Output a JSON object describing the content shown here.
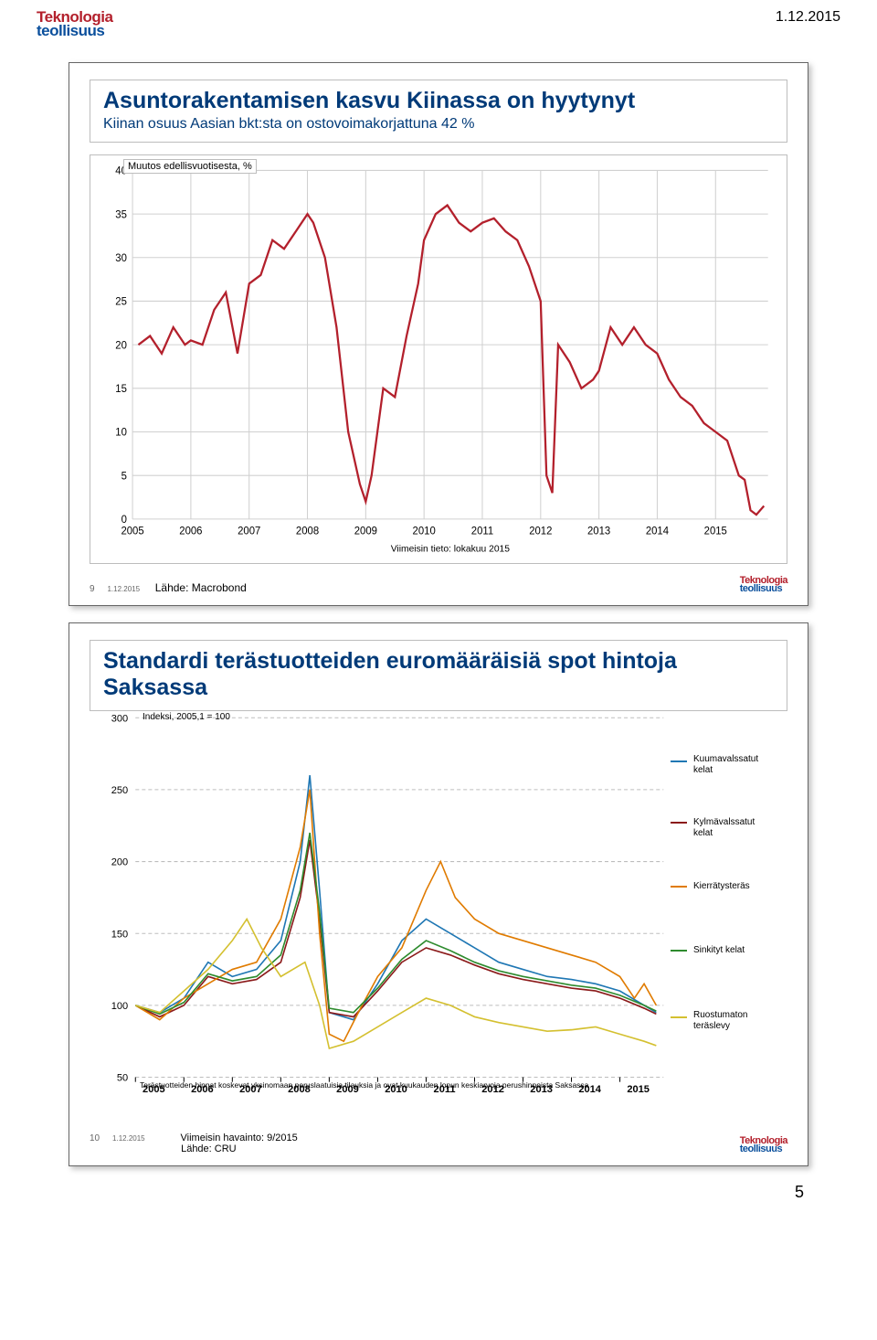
{
  "header": {
    "date": "1.12.2015",
    "logo_top": "Teknologia",
    "logo_bot": "teollisuus",
    "logo_color_top": "#b3202c",
    "logo_color_bot": "#0a4f9c"
  },
  "page_number": "5",
  "slide1": {
    "title": "Asuntorakentamisen kasvu Kiinassa on hyytynyt",
    "subtitle": "Kiinan osuus Aasian bkt:sta on ostovoimakorjattuna 42 %",
    "y_axis_box": "Muutos edellisvuotisesta, %",
    "x_note": "Viimeisin tieto: lokakuu 2015",
    "source": "Lähde: Macrobond",
    "footer_index": "9",
    "footer_date": "1.12.2015",
    "chart": {
      "type": "line",
      "ylim": [
        0,
        40
      ],
      "ytick_step": 5,
      "yticks": [
        0,
        5,
        10,
        15,
        20,
        25,
        30,
        35,
        40
      ],
      "xlim": [
        2005,
        2015.9
      ],
      "xticks": [
        2005,
        2006,
        2007,
        2008,
        2009,
        2010,
        2011,
        2012,
        2013,
        2014,
        2015
      ],
      "grid_color": "#d0d0d0",
      "line_color": "#b3202c",
      "line_width": 2.2,
      "series": [
        [
          2005.1,
          20
        ],
        [
          2005.3,
          21
        ],
        [
          2005.5,
          19
        ],
        [
          2005.7,
          22
        ],
        [
          2005.9,
          20
        ],
        [
          2006.0,
          20.5
        ],
        [
          2006.2,
          20
        ],
        [
          2006.4,
          24
        ],
        [
          2006.6,
          26
        ],
        [
          2006.8,
          19
        ],
        [
          2007.0,
          27
        ],
        [
          2007.2,
          28
        ],
        [
          2007.4,
          32
        ],
        [
          2007.6,
          31
        ],
        [
          2007.8,
          33
        ],
        [
          2008.0,
          35
        ],
        [
          2008.1,
          34
        ],
        [
          2008.3,
          30
        ],
        [
          2008.5,
          22
        ],
        [
          2008.7,
          10
        ],
        [
          2008.9,
          4
        ],
        [
          2009.0,
          2
        ],
        [
          2009.1,
          5
        ],
        [
          2009.3,
          15
        ],
        [
          2009.5,
          14
        ],
        [
          2009.7,
          21
        ],
        [
          2009.9,
          27
        ],
        [
          2010.0,
          32
        ],
        [
          2010.2,
          35
        ],
        [
          2010.4,
          36
        ],
        [
          2010.6,
          34
        ],
        [
          2010.8,
          33
        ],
        [
          2011.0,
          34
        ],
        [
          2011.2,
          34.5
        ],
        [
          2011.4,
          33
        ],
        [
          2011.6,
          32
        ],
        [
          2011.8,
          29
        ],
        [
          2012.0,
          25
        ],
        [
          2012.1,
          5
        ],
        [
          2012.2,
          3
        ],
        [
          2012.3,
          20
        ],
        [
          2012.5,
          18
        ],
        [
          2012.7,
          15
        ],
        [
          2012.9,
          16
        ],
        [
          2013.0,
          17
        ],
        [
          2013.2,
          22
        ],
        [
          2013.4,
          20
        ],
        [
          2013.6,
          22
        ],
        [
          2013.8,
          20
        ],
        [
          2014.0,
          19
        ],
        [
          2014.2,
          16
        ],
        [
          2014.4,
          14
        ],
        [
          2014.6,
          13
        ],
        [
          2014.8,
          11
        ],
        [
          2015.0,
          10
        ],
        [
          2015.2,
          9
        ],
        [
          2015.4,
          5
        ],
        [
          2015.5,
          4.5
        ],
        [
          2015.6,
          1
        ],
        [
          2015.7,
          0.5
        ],
        [
          2015.83,
          1.5
        ]
      ]
    }
  },
  "slide2": {
    "title": "Standardi terästuotteiden euromääräisiä spot hintoja Saksassa",
    "index_label": "Indeksi, 2005,1 = 100",
    "source_line1": "Viimeisin havainto: 9/2015",
    "source_line2": "Lähde: CRU",
    "footnote": "Terästuotteiden hinnat koskevat yksinomaan peruslaatuisia tilauksia ja ovat kuukauden lopun keskiarvoja perushinnoista Saksassa",
    "footer_index": "10",
    "footer_date": "1.12.2015",
    "chart": {
      "type": "line",
      "ylim": [
        50,
        300
      ],
      "yticks": [
        50,
        100,
        150,
        200,
        250,
        300
      ],
      "xlim": [
        2005,
        2015.9
      ],
      "xticks": [
        2005,
        2006,
        2007,
        2008,
        2009,
        2010,
        2011,
        2012,
        2013,
        2014,
        2015
      ],
      "grid_color": "#bdbdbd",
      "grid_dash": "4 3",
      "line_width": 1.6,
      "legend": [
        {
          "label": "Kuumavalssatut kelat",
          "color": "#1f77b4"
        },
        {
          "label": "Kylmävalssatut kelat",
          "color": "#8b1a1a"
        },
        {
          "label": "Kierrätysteräs",
          "color": "#e07b00"
        },
        {
          "label": "Sinkityt kelat",
          "color": "#2e8b2e"
        },
        {
          "label": "Ruostumaton teräslevy",
          "color": "#d4c030"
        }
      ],
      "series": {
        "kuuma": {
          "color": "#1f77b4",
          "pts": [
            [
              2005,
              100
            ],
            [
              2005.5,
              95
            ],
            [
              2006,
              105
            ],
            [
              2006.5,
              130
            ],
            [
              2007,
              120
            ],
            [
              2007.5,
              125
            ],
            [
              2008,
              145
            ],
            [
              2008.4,
              200
            ],
            [
              2008.6,
              260
            ],
            [
              2008.8,
              180
            ],
            [
              2009,
              95
            ],
            [
              2009.5,
              90
            ],
            [
              2010,
              115
            ],
            [
              2010.5,
              145
            ],
            [
              2011,
              160
            ],
            [
              2011.5,
              150
            ],
            [
              2012,
              140
            ],
            [
              2012.5,
              130
            ],
            [
              2013,
              125
            ],
            [
              2013.5,
              120
            ],
            [
              2014,
              118
            ],
            [
              2014.5,
              115
            ],
            [
              2015,
              110
            ],
            [
              2015.5,
              100
            ],
            [
              2015.75,
              95
            ]
          ]
        },
        "kylma": {
          "color": "#8b1a1a",
          "pts": [
            [
              2005,
              100
            ],
            [
              2005.5,
              92
            ],
            [
              2006,
              100
            ],
            [
              2006.5,
              120
            ],
            [
              2007,
              115
            ],
            [
              2007.5,
              118
            ],
            [
              2008,
              130
            ],
            [
              2008.4,
              175
            ],
            [
              2008.6,
              215
            ],
            [
              2008.8,
              160
            ],
            [
              2009,
              95
            ],
            [
              2009.5,
              92
            ],
            [
              2010,
              110
            ],
            [
              2010.5,
              130
            ],
            [
              2011,
              140
            ],
            [
              2011.5,
              135
            ],
            [
              2012,
              128
            ],
            [
              2012.5,
              122
            ],
            [
              2013,
              118
            ],
            [
              2013.5,
              115
            ],
            [
              2014,
              112
            ],
            [
              2014.5,
              110
            ],
            [
              2015,
              105
            ],
            [
              2015.5,
              98
            ],
            [
              2015.75,
              94
            ]
          ]
        },
        "kierratys": {
          "color": "#e07b00",
          "pts": [
            [
              2005,
              100
            ],
            [
              2005.5,
              90
            ],
            [
              2006,
              105
            ],
            [
              2006.5,
              115
            ],
            [
              2007,
              125
            ],
            [
              2007.5,
              130
            ],
            [
              2008,
              160
            ],
            [
              2008.4,
              210
            ],
            [
              2008.6,
              250
            ],
            [
              2008.8,
              150
            ],
            [
              2009,
              80
            ],
            [
              2009.3,
              75
            ],
            [
              2009.6,
              95
            ],
            [
              2010,
              120
            ],
            [
              2010.5,
              140
            ],
            [
              2011,
              180
            ],
            [
              2011.3,
              200
            ],
            [
              2011.6,
              175
            ],
            [
              2012,
              160
            ],
            [
              2012.5,
              150
            ],
            [
              2013,
              145
            ],
            [
              2013.5,
              140
            ],
            [
              2014,
              135
            ],
            [
              2014.5,
              130
            ],
            [
              2015,
              120
            ],
            [
              2015.3,
              105
            ],
            [
              2015.5,
              115
            ],
            [
              2015.75,
              100
            ]
          ]
        },
        "sinkityt": {
          "color": "#2e8b2e",
          "pts": [
            [
              2005,
              100
            ],
            [
              2005.5,
              94
            ],
            [
              2006,
              102
            ],
            [
              2006.5,
              122
            ],
            [
              2007,
              117
            ],
            [
              2007.5,
              120
            ],
            [
              2008,
              135
            ],
            [
              2008.4,
              180
            ],
            [
              2008.6,
              220
            ],
            [
              2008.8,
              165
            ],
            [
              2009,
              98
            ],
            [
              2009.5,
              95
            ],
            [
              2010,
              112
            ],
            [
              2010.5,
              132
            ],
            [
              2011,
              145
            ],
            [
              2011.5,
              138
            ],
            [
              2012,
              130
            ],
            [
              2012.5,
              124
            ],
            [
              2013,
              120
            ],
            [
              2013.5,
              117
            ],
            [
              2014,
              114
            ],
            [
              2014.5,
              112
            ],
            [
              2015,
              107
            ],
            [
              2015.5,
              100
            ],
            [
              2015.75,
              96
            ]
          ]
        },
        "ruostumaton": {
          "color": "#d4c030",
          "pts": [
            [
              2005,
              100
            ],
            [
              2005.5,
              95
            ],
            [
              2006,
              110
            ],
            [
              2006.5,
              125
            ],
            [
              2007,
              145
            ],
            [
              2007.3,
              160
            ],
            [
              2007.6,
              140
            ],
            [
              2008,
              120
            ],
            [
              2008.5,
              130
            ],
            [
              2008.8,
              100
            ],
            [
              2009,
              70
            ],
            [
              2009.5,
              75
            ],
            [
              2010,
              85
            ],
            [
              2010.5,
              95
            ],
            [
              2011,
              105
            ],
            [
              2011.5,
              100
            ],
            [
              2012,
              92
            ],
            [
              2012.5,
              88
            ],
            [
              2013,
              85
            ],
            [
              2013.5,
              82
            ],
            [
              2014,
              83
            ],
            [
              2014.5,
              85
            ],
            [
              2015,
              80
            ],
            [
              2015.5,
              75
            ],
            [
              2015.75,
              72
            ]
          ]
        }
      }
    }
  }
}
